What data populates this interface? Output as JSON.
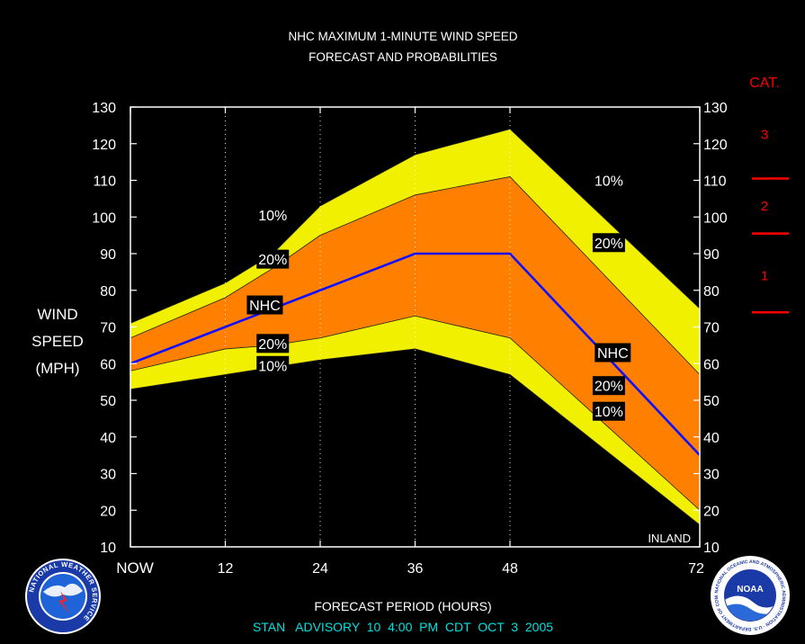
{
  "chart_data": {
    "type": "area",
    "title": "NHC MAXIMUM 1-MINUTE WIND SPEED",
    "subtitle": "FORECAST AND PROBABILITIES",
    "ylabel_lines": [
      "WIND",
      "SPEED",
      "(MPH)"
    ],
    "xlabel": "FORECAST PERIOD (HOURS)",
    "footer": "STAN   ADVISORY  10  4:00  PM  CDT  OCT  3  2005",
    "inland_label": "INLAND",
    "xlim": [
      0,
      72
    ],
    "ylim": [
      10,
      130
    ],
    "x_ticks": [
      {
        "x": 0,
        "label": "NOW"
      },
      {
        "x": 12,
        "label": "12"
      },
      {
        "x": 24,
        "label": "24"
      },
      {
        "x": 36,
        "label": "36"
      },
      {
        "x": 48,
        "label": "48"
      },
      {
        "x": 72,
        "label": "72"
      }
    ],
    "y_ticks": [
      10,
      20,
      30,
      40,
      50,
      60,
      70,
      80,
      90,
      100,
      110,
      120,
      130
    ],
    "vertical_grid_x": [
      12,
      24,
      36,
      48
    ],
    "x": [
      0,
      12,
      18,
      24,
      36,
      48,
      72
    ],
    "series": [
      {
        "name": "10%",
        "role": "upper",
        "values": [
          71,
          82,
          90,
          103,
          117,
          124,
          75
        ]
      },
      {
        "name": "20%",
        "role": "upper",
        "values": [
          67,
          78,
          86,
          95,
          106,
          111,
          57
        ]
      },
      {
        "name": "NHC",
        "role": "forecast",
        "values": [
          60,
          70,
          75,
          80,
          90,
          90,
          35
        ]
      },
      {
        "name": "20%",
        "role": "lower",
        "values": [
          58,
          64,
          65,
          67,
          73,
          67,
          20
        ]
      },
      {
        "name": "10%",
        "role": "lower",
        "values": [
          53,
          57,
          59,
          61,
          64,
          57,
          16
        ]
      }
    ],
    "band_labels": [
      {
        "text": "10%",
        "x": 18,
        "y": 100.5
      },
      {
        "text": "20%",
        "x": 18,
        "y": 88.5
      },
      {
        "text": "NHC",
        "x": 17,
        "y": 76
      },
      {
        "text": "20%",
        "x": 18,
        "y": 65.5
      },
      {
        "text": "10%",
        "x": 18,
        "y": 59.5
      },
      {
        "text": "10%",
        "x": 60.5,
        "y": 110
      },
      {
        "text": "20%",
        "x": 60.5,
        "y": 93
      },
      {
        "text": "NHC",
        "x": 61,
        "y": 63
      },
      {
        "text": "20%",
        "x": 60.5,
        "y": 54
      },
      {
        "text": "10%",
        "x": 60.5,
        "y": 47
      }
    ],
    "category_scale": {
      "title": "CAT.",
      "color": "#ff0000",
      "labels": [
        {
          "text": "3",
          "y": 122.5
        },
        {
          "text": "2",
          "y": 103
        },
        {
          "text": "1",
          "y": 84
        }
      ],
      "dividers": [
        110.5,
        95.5,
        74
      ]
    },
    "colors": {
      "background": "#000000",
      "outer_band": "#f0f000",
      "inner_band": "#ff8000",
      "forecast_line": "#1010ff",
      "text": "#ffffff",
      "footer_text": "#00e0e0"
    }
  },
  "logos": {
    "left": "NATIONAL WEATHER SERVICE",
    "right_center": "NOAA",
    "right_ring": "NATIONAL OCEANIC AND ATMOSPHERIC ADMINISTRATION · U.S. DEPARTMENT OF COMMERCE"
  }
}
